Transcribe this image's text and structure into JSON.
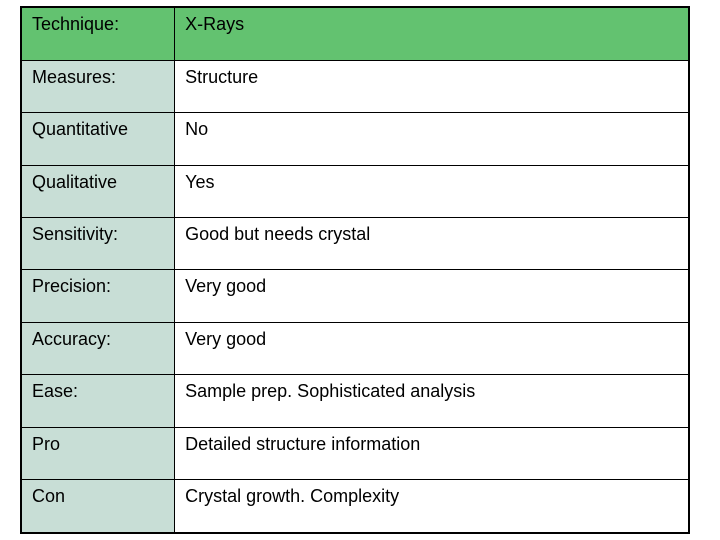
{
  "table": {
    "header_bg": "#63c270",
    "label_bg": "#c8ded6",
    "border_color": "#000000",
    "font_size": 18,
    "rows": [
      {
        "label": "Technique:",
        "value": "X-Rays",
        "header": true
      },
      {
        "label": "Measures:",
        "value": "Structure",
        "header": false
      },
      {
        "label": "Quantitative",
        "value": "No",
        "header": false
      },
      {
        "label": "Qualitative",
        "value": "Yes",
        "header": false
      },
      {
        "label": "Sensitivity:",
        "value": "Good but needs crystal",
        "header": false
      },
      {
        "label": "Precision:",
        "value": "Very good",
        "header": false
      },
      {
        "label": "Accuracy:",
        "value": "Very good",
        "header": false
      },
      {
        "label": "Ease:",
        "value": "Sample prep. Sophisticated analysis",
        "header": false
      },
      {
        "label": "Pro",
        "value": "Detailed structure information",
        "header": false
      },
      {
        "label": "Con",
        "value": "Crystal growth. Complexity",
        "header": false
      }
    ]
  }
}
